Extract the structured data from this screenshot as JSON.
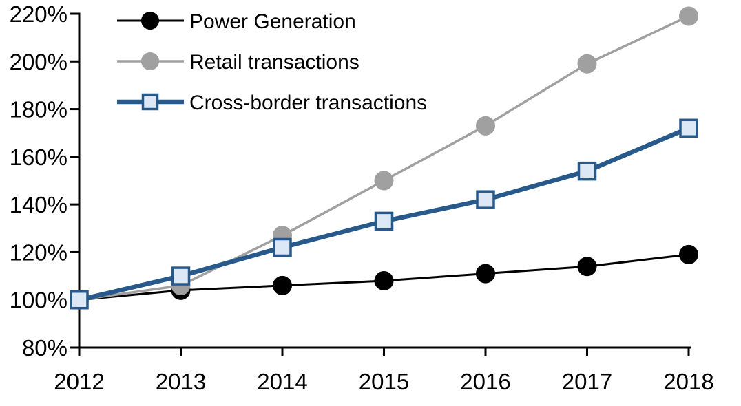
{
  "chart_data": {
    "type": "line",
    "title": "",
    "xlabel": "",
    "ylabel": "",
    "x": [
      "2012",
      "2013",
      "2014",
      "2015",
      "2016",
      "2017",
      "2018"
    ],
    "series": [
      {
        "name": "Power Generation",
        "values": [
          100,
          104,
          106,
          108,
          111,
          114,
          119
        ],
        "color": "#000000",
        "line_width": 3,
        "marker": "circle",
        "marker_fill": "#000000",
        "marker_stroke": "#000000"
      },
      {
        "name": "Retail transactions",
        "values": [
          100,
          106,
          127,
          150,
          173,
          199,
          219
        ],
        "color": "#A0A0A0",
        "line_width": 3.5,
        "marker": "circle",
        "marker_fill": "#A0A0A0",
        "marker_stroke": "#A0A0A0"
      },
      {
        "name": "Cross-border transactions",
        "values": [
          100,
          110,
          122,
          133,
          142,
          154,
          172
        ],
        "color": "#27598A",
        "line_width": 6.5,
        "marker": "square",
        "marker_fill": "#DCE8F5",
        "marker_stroke": "#27598A"
      }
    ],
    "ylim": [
      80,
      220
    ],
    "ytick_step": 20,
    "ytick_labels": [
      "80%",
      "100%",
      "120%",
      "140%",
      "160%",
      "180%",
      "200%",
      "220%"
    ],
    "xtick_labels": [
      "2012",
      "2013",
      "2014",
      "2015",
      "2016",
      "2017",
      "2018"
    ],
    "values_are_percent": true,
    "grid": false,
    "legend_position": "top-left",
    "axis_color": "#000000",
    "background_color": "#FFFFFF"
  }
}
